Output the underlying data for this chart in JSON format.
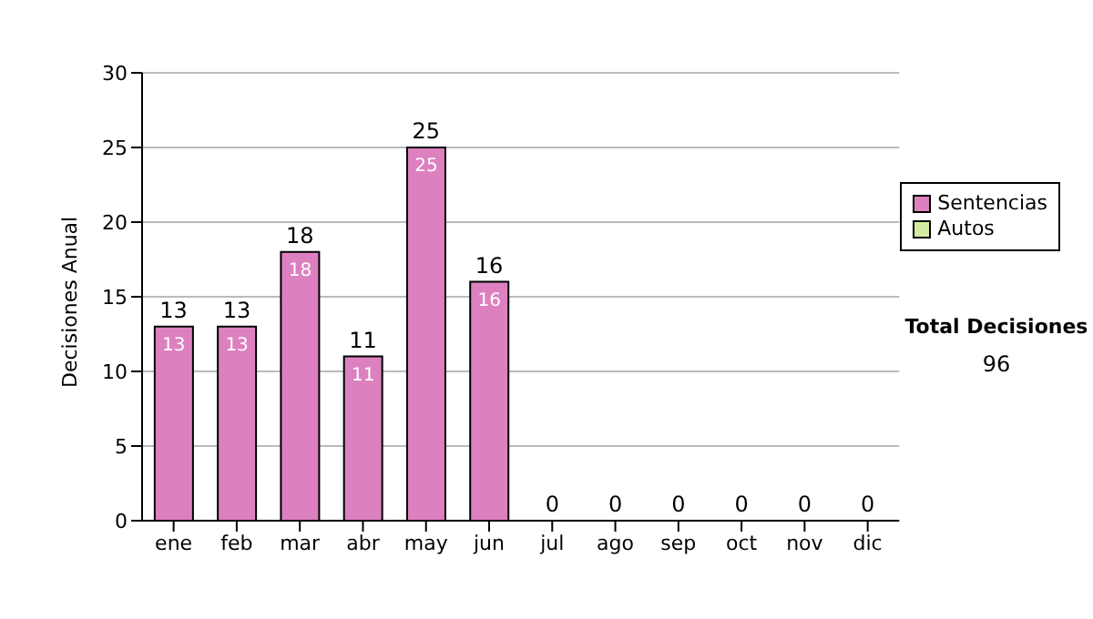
{
  "chart_data": {
    "type": "bar",
    "stacked": true,
    "ylabel": "Decisiones Anual",
    "categories": [
      "ene",
      "feb",
      "mar",
      "abr",
      "may",
      "jun",
      "jul",
      "ago",
      "sep",
      "oct",
      "nov",
      "dic"
    ],
    "series": [
      {
        "name": "Sentencias",
        "color": "#dd80c0",
        "values": [
          13,
          13,
          18,
          11,
          25,
          16,
          0,
          0,
          0,
          0,
          0,
          0
        ],
        "value_labels": [
          "13",
          "13",
          "18",
          "11",
          "25",
          "16",
          null,
          null,
          null,
          null,
          null,
          null
        ]
      },
      {
        "name": "Autos",
        "color": "#d4eca0",
        "values": [
          0,
          0,
          0,
          0,
          0,
          0,
          0,
          0,
          0,
          0,
          0,
          0
        ]
      }
    ],
    "totals": [
      "13",
      "13",
      "18",
      "11",
      "25",
      "16",
      "0",
      "0",
      "0",
      "0",
      "0",
      "0"
    ],
    "ylim": [
      0,
      30
    ],
    "yticks": [
      0,
      5,
      10,
      15,
      20,
      25,
      30
    ],
    "grid": "y",
    "legend": "right",
    "annotations": [
      "Total Decisiones",
      "96"
    ]
  }
}
